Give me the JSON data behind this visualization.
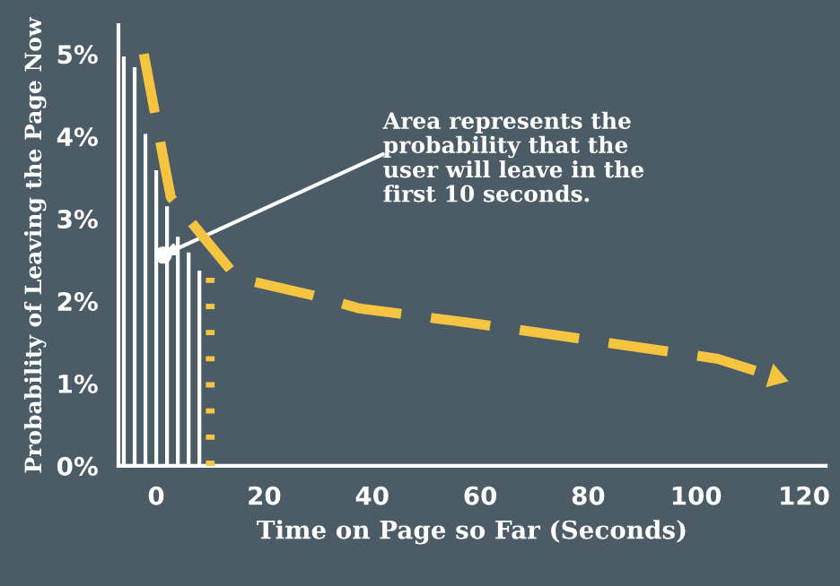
{
  "chart_data": {
    "type": "bar",
    "xlabel": "Time on Page so Far (Seconds)",
    "ylabel": "Probability of Leaving the Page Now",
    "series": [
      {
        "color": "#ffffff",
        "x": [
          -6,
          -4,
          -2,
          0,
          2,
          4,
          6,
          8
        ],
        "values": [
          4.97,
          4.84,
          4.03,
          3.59,
          3.15,
          2.78,
          2.59,
          2.37
        ]
      },
      {
        "type": "line",
        "color": "#f5c542",
        "line_style": "dashed",
        "x": [
          -2.3,
          1.3,
          2.7,
          15,
          29,
          37.7,
          57.7,
          81,
          104,
          114
        ],
        "values": [
          5.0,
          3.74,
          3.26,
          2.28,
          2.07,
          1.91,
          1.74,
          1.52,
          1.3,
          1.09
        ]
      },
      {
        "type": "line",
        "color": "#f5c542",
        "line_style": "dotted",
        "x": [
          10,
          10
        ],
        "values": [
          0,
          2.35
        ]
      }
    ],
    "annotations": [
      {
        "text": "Area represents the\nprobability that the\nuser will leave in the\nfirst 10 seconds.",
        "x": 1.3,
        "y": 2.56
      }
    ],
    "xlim": [
      -7,
      124
    ],
    "xticks": [
      0,
      20,
      40,
      60,
      80,
      100,
      120
    ],
    "ylim": [
      0,
      5.35
    ],
    "yticks": [
      {
        "value": 0,
        "label": "0%"
      },
      {
        "value": 1,
        "label": "1%"
      },
      {
        "value": 2,
        "label": "2%"
      },
      {
        "value": 3,
        "label": "3%"
      },
      {
        "value": 4,
        "label": "4%"
      },
      {
        "value": 5,
        "label": "5%"
      }
    ],
    "grid": false,
    "legend": false
  }
}
